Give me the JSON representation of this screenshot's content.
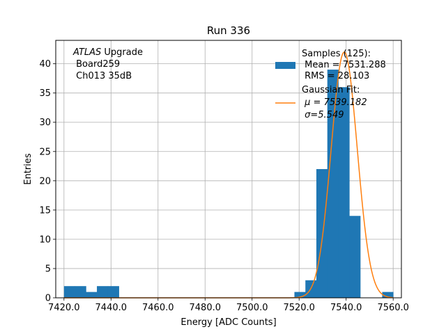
{
  "chart_data": {
    "type": "bar",
    "title": "Run 336",
    "xlabel": "Energy [ADC Counts]",
    "ylabel": "Entries",
    "xlim": [
      7416.5,
      7563.5
    ],
    "ylim": [
      0,
      44
    ],
    "x_ticks": [
      7420,
      7440,
      7460,
      7480,
      7500,
      7520,
      7540,
      7560
    ],
    "x_tick_labels": [
      "7420.0",
      "7440.0",
      "7460.0",
      "7480.0",
      "7500.0",
      "7520.0",
      "7540.0",
      "7560.0"
    ],
    "y_ticks": [
      0,
      5,
      10,
      15,
      20,
      25,
      30,
      35,
      40
    ],
    "y_tick_labels": [
      "0",
      "5",
      "10",
      "15",
      "20",
      "25",
      "30",
      "35",
      "40"
    ],
    "grid": true,
    "bin_width": 4.67,
    "bins": [
      {
        "x0": 7420.0,
        "value": 2
      },
      {
        "x0": 7424.67,
        "value": 2
      },
      {
        "x0": 7429.33,
        "value": 1
      },
      {
        "x0": 7434.0,
        "value": 2
      },
      {
        "x0": 7438.67,
        "value": 2
      },
      {
        "x0": 7518.0,
        "value": 1
      },
      {
        "x0": 7522.67,
        "value": 3
      },
      {
        "x0": 7527.33,
        "value": 22
      },
      {
        "x0": 7532.0,
        "value": 39
      },
      {
        "x0": 7536.67,
        "value": 36
      },
      {
        "x0": 7541.33,
        "value": 14
      },
      {
        "x0": 7555.33,
        "value": 1
      }
    ],
    "series": [
      {
        "name": "Samples (125):\n Mean = 7531.288\n RMS = 28.103",
        "type": "histogram",
        "color": "#1f77b4"
      },
      {
        "name": "Gaussian Fit:\n μ = 7539.182\n σ=5.549",
        "type": "line",
        "color": "#ff7f0e",
        "mu": 7539.182,
        "sigma": 5.549,
        "amplitude": 42
      }
    ],
    "legend_position": "top-right",
    "annotation": {
      "line1_italic": "ATLAS",
      "line1_rest": " Upgrade",
      "line2": " Board259",
      "line3": " Ch013 35dB"
    },
    "legend": {
      "samples_lines": [
        "Samples (125):",
        " Mean = 7531.288",
        " RMS = 28.103"
      ],
      "fit_lines": [
        "Gaussian Fit:",
        " μ = 7539.182",
        " σ=5.549"
      ]
    }
  }
}
